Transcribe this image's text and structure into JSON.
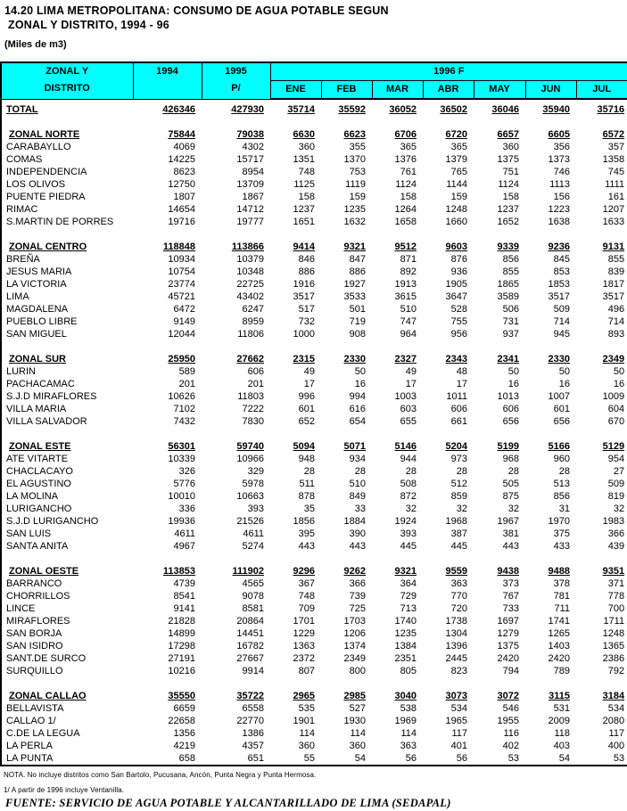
{
  "title": {
    "line1": "14.20 LIMA METROPOLITANA: CONSUMO DE AGUA POTABLE SEGUN",
    "line2": "ZONAL Y DISTRITO, 1994 - 96",
    "units": "(Miles de m3)"
  },
  "colors": {
    "header_bg": "#00FFFF",
    "border": "#000000",
    "text": "#000000",
    "page_bg": "#FFFFFF"
  },
  "table": {
    "header": {
      "col1_line1": "ZONAL Y",
      "col1_line2": "DISTRITO",
      "col_1994": "1994",
      "col_1995_line1": "1995",
      "col_1995_line2": "P/",
      "group_1996": "1996 F",
      "months": [
        "ENE",
        "FEB",
        "MAR",
        "ABR",
        "MAY",
        "JUN",
        "JUL"
      ]
    },
    "rows": [
      {
        "type": "gap"
      },
      {
        "type": "total",
        "label": "TOTAL",
        "values": [
          426346,
          427930,
          35714,
          35592,
          36052,
          36502,
          36046,
          35940,
          35716
        ]
      },
      {
        "type": "spacer"
      },
      {
        "type": "zone",
        "label": "ZONAL NORTE",
        "values": [
          75844,
          79038,
          6630,
          6623,
          6706,
          6720,
          6657,
          6605,
          6572
        ]
      },
      {
        "type": "district",
        "label": "CARABAYLLO",
        "values": [
          4069,
          4302,
          360,
          355,
          365,
          365,
          360,
          356,
          357
        ]
      },
      {
        "type": "district",
        "label": "COMAS",
        "values": [
          14225,
          15717,
          1351,
          1370,
          1376,
          1379,
          1375,
          1373,
          1358
        ]
      },
      {
        "type": "district",
        "label": "INDEPENDENCIA",
        "values": [
          8623,
          8954,
          748,
          753,
          761,
          765,
          751,
          746,
          745
        ]
      },
      {
        "type": "district",
        "label": "LOS OLIVOS",
        "values": [
          12750,
          13709,
          1125,
          1119,
          1124,
          1144,
          1124,
          1113,
          1111
        ]
      },
      {
        "type": "district",
        "label": "PUENTE PIEDRA",
        "values": [
          1807,
          1867,
          158,
          159,
          158,
          159,
          158,
          156,
          161
        ]
      },
      {
        "type": "district",
        "label": "RIMAC",
        "values": [
          14654,
          14712,
          1237,
          1235,
          1264,
          1248,
          1237,
          1223,
          1207
        ]
      },
      {
        "type": "district",
        "label": "S.MARTIN DE PORRES",
        "values": [
          19716,
          19777,
          1651,
          1632,
          1658,
          1660,
          1652,
          1638,
          1633
        ]
      },
      {
        "type": "spacer"
      },
      {
        "type": "zone",
        "label": "ZONAL CENTRO",
        "values": [
          118848,
          113866,
          9414,
          9321,
          9512,
          9603,
          9339,
          9236,
          9131
        ]
      },
      {
        "type": "district",
        "label": "BREÑA",
        "values": [
          10934,
          10379,
          846,
          847,
          871,
          876,
          856,
          845,
          855
        ]
      },
      {
        "type": "district",
        "label": "JESUS MARIA",
        "values": [
          10754,
          10348,
          886,
          886,
          892,
          936,
          855,
          853,
          839
        ]
      },
      {
        "type": "district",
        "label": "LA VICTORIA",
        "values": [
          23774,
          22725,
          1916,
          1927,
          1913,
          1905,
          1865,
          1853,
          1817
        ]
      },
      {
        "type": "district",
        "label": "LIMA",
        "values": [
          45721,
          43402,
          3517,
          3533,
          3615,
          3647,
          3589,
          3517,
          3517
        ]
      },
      {
        "type": "district",
        "label": "MAGDALENA",
        "values": [
          6472,
          6247,
          517,
          501,
          510,
          528,
          506,
          509,
          496
        ]
      },
      {
        "type": "district",
        "label": "PUEBLO LIBRE",
        "values": [
          9149,
          8959,
          732,
          719,
          747,
          755,
          731,
          714,
          714
        ]
      },
      {
        "type": "district",
        "label": "SAN MIGUEL",
        "values": [
          12044,
          11806,
          1000,
          908,
          964,
          956,
          937,
          945,
          893
        ]
      },
      {
        "type": "spacer"
      },
      {
        "type": "zone",
        "label": "ZONAL SUR",
        "values": [
          25950,
          27662,
          2315,
          2330,
          2327,
          2343,
          2341,
          2330,
          2349
        ]
      },
      {
        "type": "district",
        "label": "LURIN",
        "values": [
          589,
          606,
          49,
          50,
          49,
          48,
          50,
          50,
          50
        ]
      },
      {
        "type": "district",
        "label": "PACHACAMAC",
        "values": [
          201,
          201,
          17,
          16,
          17,
          17,
          16,
          16,
          16
        ]
      },
      {
        "type": "district",
        "label": "S.J.D MIRAFLORES",
        "values": [
          10626,
          11803,
          996,
          994,
          1003,
          1011,
          1013,
          1007,
          1009
        ]
      },
      {
        "type": "district",
        "label": "VILLA MARIA",
        "values": [
          7102,
          7222,
          601,
          616,
          603,
          606,
          606,
          601,
          604
        ]
      },
      {
        "type": "district",
        "label": "VILLA  SALVADOR",
        "values": [
          7432,
          7830,
          652,
          654,
          655,
          661,
          656,
          656,
          670
        ]
      },
      {
        "type": "spacer"
      },
      {
        "type": "zone",
        "label": "ZONAL ESTE",
        "values": [
          56301,
          59740,
          5094,
          5071,
          5146,
          5204,
          5199,
          5166,
          5129
        ]
      },
      {
        "type": "district",
        "label": "ATE VITARTE",
        "values": [
          10339,
          10966,
          948,
          934,
          944,
          973,
          968,
          960,
          954
        ]
      },
      {
        "type": "district",
        "label": "CHACLACAYO",
        "values": [
          326,
          329,
          28,
          28,
          28,
          28,
          28,
          28,
          27
        ]
      },
      {
        "type": "district",
        "label": "EL AGUSTINO",
        "values": [
          5776,
          5978,
          511,
          510,
          508,
          512,
          505,
          513,
          509
        ]
      },
      {
        "type": "district",
        "label": "LA MOLINA",
        "values": [
          10010,
          10663,
          878,
          849,
          872,
          859,
          875,
          856,
          819
        ]
      },
      {
        "type": "district",
        "label": "LURIGANCHO",
        "values": [
          336,
          393,
          35,
          33,
          32,
          32,
          32,
          31,
          32
        ]
      },
      {
        "type": "district",
        "label": "S.J.D LURIGANCHO",
        "values": [
          19936,
          21526,
          1856,
          1884,
          1924,
          1968,
          1967,
          1970,
          1983
        ]
      },
      {
        "type": "district",
        "label": "SAN LUIS",
        "values": [
          4611,
          4611,
          395,
          390,
          393,
          387,
          381,
          375,
          366
        ]
      },
      {
        "type": "district",
        "label": "SANTA ANITA",
        "values": [
          4967,
          5274,
          443,
          443,
          445,
          445,
          443,
          433,
          439
        ]
      },
      {
        "type": "spacer"
      },
      {
        "type": "zone",
        "label": "ZONAL OESTE",
        "values": [
          113853,
          111902,
          9296,
          9262,
          9321,
          9559,
          9438,
          9488,
          9351
        ]
      },
      {
        "type": "district",
        "label": "BARRANCO",
        "values": [
          4739,
          4565,
          367,
          366,
          364,
          363,
          373,
          378,
          371
        ]
      },
      {
        "type": "district",
        "label": "CHORRILLOS",
        "values": [
          8541,
          9078,
          748,
          739,
          729,
          770,
          767,
          781,
          778
        ]
      },
      {
        "type": "district",
        "label": "LINCE",
        "values": [
          9141,
          8581,
          709,
          725,
          713,
          720,
          733,
          711,
          700
        ]
      },
      {
        "type": "district",
        "label": "MIRAFLORES",
        "values": [
          21828,
          20864,
          1701,
          1703,
          1740,
          1738,
          1697,
          1741,
          1711
        ]
      },
      {
        "type": "district",
        "label": "SAN BORJA",
        "values": [
          14899,
          14451,
          1229,
          1206,
          1235,
          1304,
          1279,
          1265,
          1248
        ]
      },
      {
        "type": "district",
        "label": "SAN ISIDRO",
        "values": [
          17298,
          16782,
          1363,
          1374,
          1384,
          1396,
          1375,
          1403,
          1365
        ]
      },
      {
        "type": "district",
        "label": "SANT.DE SURCO",
        "values": [
          27191,
          27667,
          2372,
          2349,
          2351,
          2445,
          2420,
          2420,
          2386
        ]
      },
      {
        "type": "district",
        "label": "SURQUILLO",
        "values": [
          10216,
          9914,
          807,
          800,
          805,
          823,
          794,
          789,
          792
        ]
      },
      {
        "type": "spacer"
      },
      {
        "type": "zone",
        "label": "ZONAL CALLAO",
        "values": [
          35550,
          35722,
          2965,
          2985,
          3040,
          3073,
          3072,
          3115,
          3184
        ]
      },
      {
        "type": "district",
        "label": "BELLAVISTA",
        "values": [
          6659,
          6558,
          535,
          527,
          538,
          534,
          546,
          531,
          534
        ]
      },
      {
        "type": "district",
        "label": "CALLAO 1/",
        "values": [
          22658,
          22770,
          1901,
          1930,
          1969,
          1965,
          1955,
          2009,
          2080
        ]
      },
      {
        "type": "district",
        "label": "C.DE LA LEGUA",
        "values": [
          1356,
          1386,
          114,
          114,
          114,
          117,
          116,
          118,
          117
        ]
      },
      {
        "type": "district",
        "label": "LA PERLA",
        "values": [
          4219,
          4357,
          360,
          360,
          363,
          401,
          402,
          403,
          400
        ]
      },
      {
        "type": "district",
        "label": "LA PUNTA",
        "values": [
          658,
          651,
          55,
          54,
          56,
          56,
          53,
          54,
          53
        ]
      }
    ]
  },
  "footer": {
    "nota": "NOTA. No incluye distritos como San Bartolo, Pucusana, Ancón, Punta Negra y Punta Hermosa.",
    "note1": "1/ A partir de 1996 incluye Ventanilla.",
    "fuente": "FUENTE: SERVICIO DE AGUA POTABLE Y ALCANTARILLADO DE LIMA (SEDAPAL)"
  }
}
